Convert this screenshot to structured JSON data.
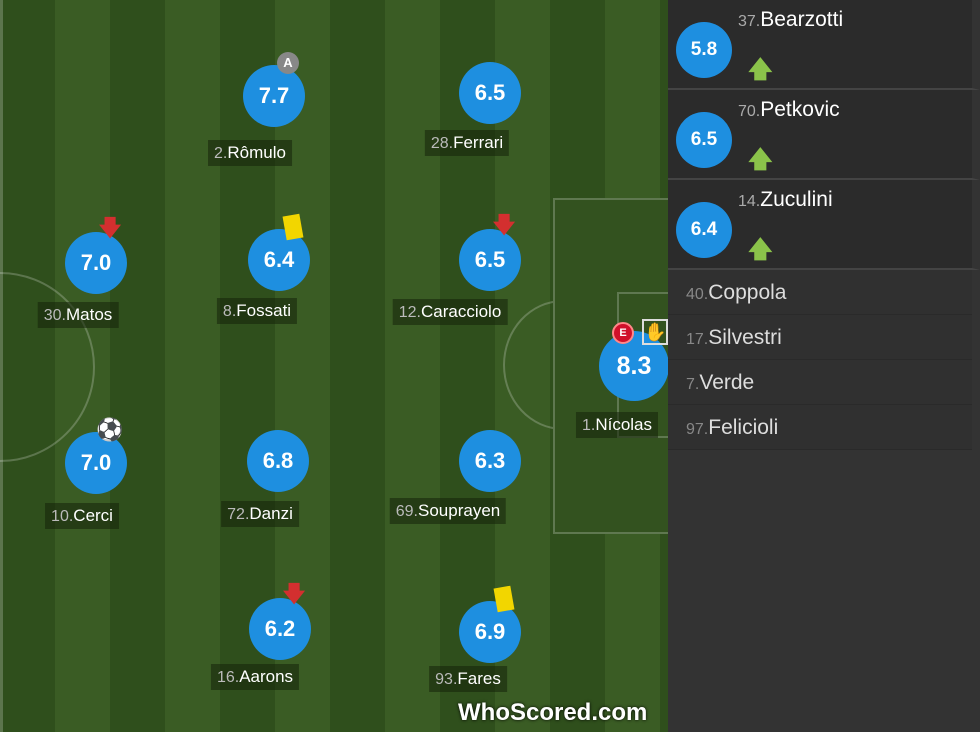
{
  "pitch": {
    "players": [
      {
        "num": "2.",
        "name": "Rômulo",
        "rating": "7.7",
        "icons": [
          "captain-icon"
        ]
      },
      {
        "num": "28.",
        "name": "Ferrari",
        "rating": "6.5",
        "icons": []
      },
      {
        "num": "30.",
        "name": "Matos",
        "rating": "7.0",
        "icons": [
          "sub-off-arrow-icon"
        ]
      },
      {
        "num": "8.",
        "name": "Fossati",
        "rating": "6.4",
        "icons": [
          "yellow-card-icon"
        ]
      },
      {
        "num": "12.",
        "name": "Caracciolo",
        "rating": "6.5",
        "icons": [
          "sub-off-arrow-icon"
        ]
      },
      {
        "num": "1.",
        "name": "Nícolas",
        "rating": "8.3",
        "icons": [
          "error-icon",
          "goalkeeper-glove-icon"
        ]
      },
      {
        "num": "10.",
        "name": "Cerci",
        "rating": "7.0",
        "icons": [
          "goal-ball-icon"
        ]
      },
      {
        "num": "72.",
        "name": "Danzi",
        "rating": "6.8",
        "icons": []
      },
      {
        "num": "69.",
        "name": "Souprayen",
        "rating": "6.3",
        "icons": []
      },
      {
        "num": "16.",
        "name": "Aarons",
        "rating": "6.2",
        "icons": [
          "sub-off-arrow-icon"
        ]
      },
      {
        "num": "93.",
        "name": "Fares",
        "rating": "6.9",
        "icons": [
          "yellow-card-icon"
        ]
      }
    ],
    "captain_badge": "A",
    "error_badge": "E"
  },
  "subs": [
    {
      "num": "37.",
      "name": "Bearzotti",
      "rating": "5.8"
    },
    {
      "num": "70.",
      "name": "Petkovic",
      "rating": "6.5"
    },
    {
      "num": "14.",
      "name": "Zuculini",
      "rating": "6.4"
    }
  ],
  "bench": [
    {
      "num": "40.",
      "name": "Coppola"
    },
    {
      "num": "17.",
      "name": "Silvestri"
    },
    {
      "num": "7.",
      "name": "Verde"
    },
    {
      "num": "97.",
      "name": "Felicioli"
    }
  ],
  "logo": {
    "text1": "WhoScored",
    "text2": ".com"
  },
  "colors": {
    "rating": "#1e8fe0",
    "sub_arrow": "#8bc34a",
    "sub_off": "#d32f2f",
    "yellow": "#f2d600"
  }
}
